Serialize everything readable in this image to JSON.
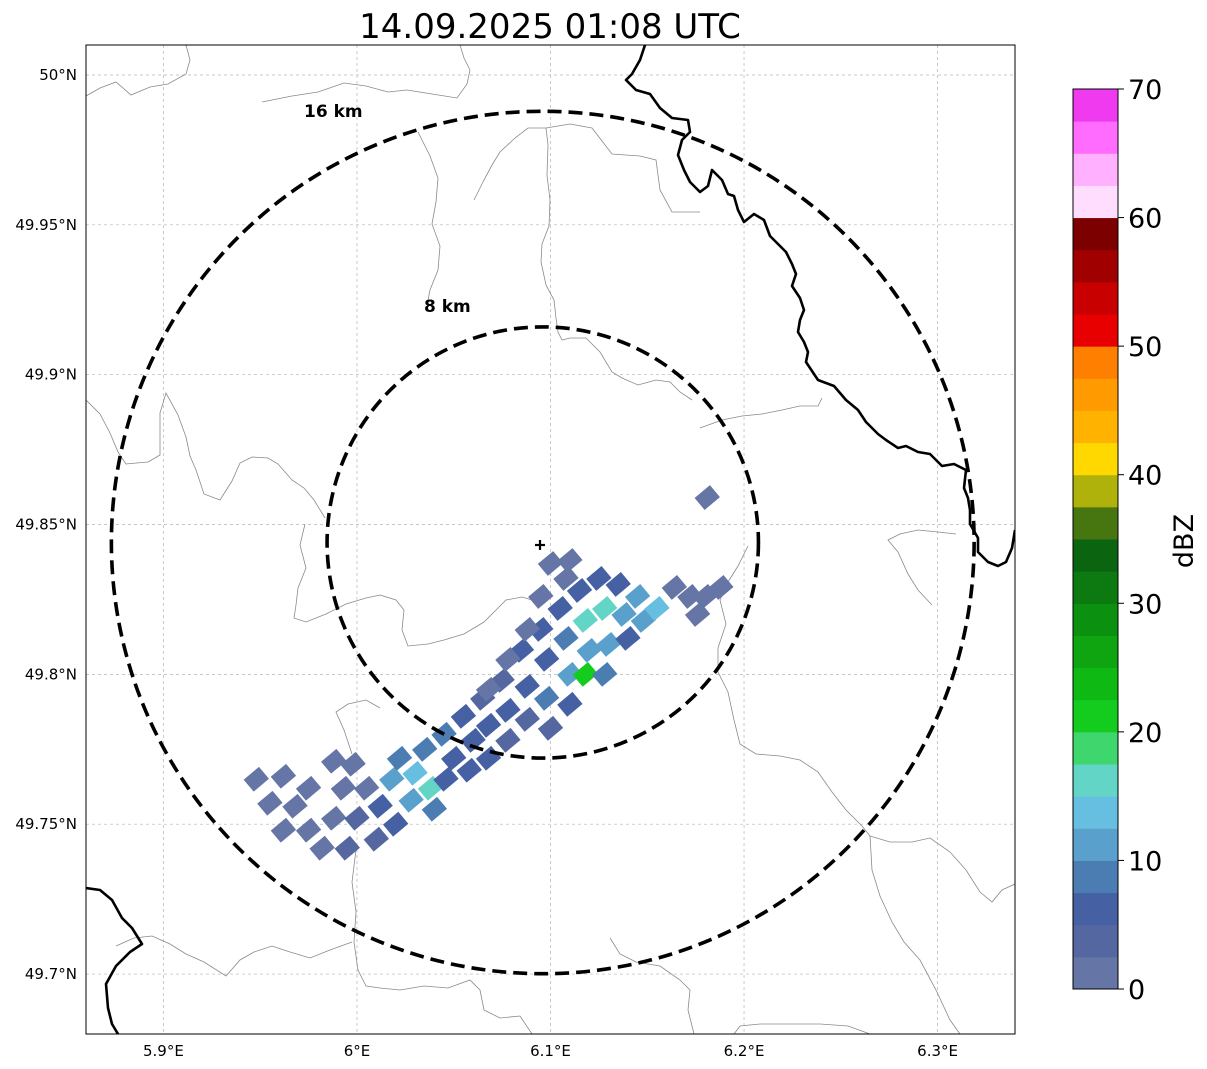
{
  "map": {
    "title": "14.09.2025 01:08 UTC",
    "extent": {
      "lon_min": 5.86,
      "lon_max": 6.34,
      "lat_min": 49.68,
      "lat_max": 50.01
    },
    "radar_site": {
      "lon": 6.096,
      "lat": 49.844
    },
    "grid_on": true,
    "lon_ticks": [
      {
        "value": 5.9,
        "label": "5.9°E"
      },
      {
        "value": 6.0,
        "label": "6°E"
      },
      {
        "value": 6.1,
        "label": "6.1°E"
      },
      {
        "value": 6.2,
        "label": "6.2°E"
      },
      {
        "value": 6.3,
        "label": "6.3°E"
      }
    ],
    "lat_ticks": [
      {
        "value": 50.0,
        "label": "50°N"
      },
      {
        "value": 49.95,
        "label": "49.95°N"
      },
      {
        "value": 49.9,
        "label": "49.9°N"
      },
      {
        "value": 49.85,
        "label": "49.85°N"
      },
      {
        "value": 49.8,
        "label": "49.8°N"
      },
      {
        "value": 49.75,
        "label": "49.75°N"
      },
      {
        "value": 49.7,
        "label": "49.7°N"
      }
    ],
    "range_rings": [
      {
        "radius_km": 8,
        "label": "8 km"
      },
      {
        "radius_km": 16,
        "label": "16 km"
      }
    ],
    "colors": {
      "borders": "#000000",
      "admin": "#8a8a8a",
      "grid": "#b5b5b5",
      "rings": "#000000"
    }
  },
  "colorbar": {
    "label": "dBZ",
    "min": 0,
    "max": 70,
    "step": 2.5,
    "ticks": [
      0,
      10,
      20,
      30,
      40,
      50,
      60,
      70
    ],
    "colors": [
      "#6475a6",
      "#5467a0",
      "#4660a4",
      "#4b7db3",
      "#5aa0cc",
      "#66bfe0",
      "#62d5c6",
      "#3fd66e",
      "#14cc1e",
      "#0fb914",
      "#0ea511",
      "#0c9010",
      "#0c7a10",
      "#0a6410",
      "#47750f",
      "#aeb20a",
      "#ffd800",
      "#ffb300",
      "#ff9a00",
      "#ff7f00",
      "#e80000",
      "#c90000",
      "#a10000",
      "#7c0000",
      "#ffddff",
      "#ffb0ff",
      "#ff6cff",
      "#f03af0"
    ]
  },
  "chart_data": {
    "type": "heatmap",
    "title": "14.09.2025 01:08 UTC",
    "units": "dBZ",
    "points": [
      [
        5.948,
        49.765,
        1
      ],
      [
        5.962,
        49.766,
        1
      ],
      [
        5.955,
        49.757,
        1
      ],
      [
        5.968,
        49.756,
        2
      ],
      [
        5.975,
        49.762,
        1
      ],
      [
        5.962,
        49.748,
        1
      ],
      [
        5.975,
        49.748,
        1
      ],
      [
        5.988,
        49.752,
        1
      ],
      [
        5.982,
        49.742,
        1
      ],
      [
        5.993,
        49.762,
        2
      ],
      [
        5.988,
        49.771,
        1
      ],
      [
        5.998,
        49.77,
        1
      ],
      [
        6.005,
        49.762,
        2
      ],
      [
        6.0,
        49.752,
        3
      ],
      [
        6.012,
        49.756,
        6
      ],
      [
        6.01,
        49.745,
        3
      ],
      [
        5.995,
        49.742,
        4
      ],
      [
        6.018,
        49.765,
        12
      ],
      [
        6.022,
        49.772,
        8
      ],
      [
        6.03,
        49.767,
        14
      ],
      [
        6.035,
        49.775,
        9
      ],
      [
        6.028,
        49.758,
        12
      ],
      [
        6.038,
        49.762,
        15
      ],
      [
        6.02,
        49.75,
        6
      ],
      [
        6.04,
        49.755,
        8
      ],
      [
        6.045,
        49.78,
        9
      ],
      [
        6.05,
        49.772,
        7
      ],
      [
        6.046,
        49.765,
        6
      ],
      [
        6.055,
        49.786,
        6
      ],
      [
        6.06,
        49.778,
        6
      ],
      [
        6.058,
        49.768,
        6
      ],
      [
        6.065,
        49.792,
        3
      ],
      [
        6.068,
        49.783,
        6
      ],
      [
        6.068,
        49.772,
        6
      ],
      [
        6.075,
        49.798,
        3
      ],
      [
        6.078,
        49.788,
        6
      ],
      [
        6.078,
        49.778,
        3
      ],
      [
        6.085,
        49.808,
        6
      ],
      [
        6.088,
        49.796,
        6
      ],
      [
        6.088,
        49.785,
        4
      ],
      [
        6.095,
        49.815,
        6
      ],
      [
        6.098,
        49.805,
        6
      ],
      [
        6.098,
        49.792,
        9
      ],
      [
        6.1,
        49.782,
        4
      ],
      [
        6.105,
        49.822,
        6
      ],
      [
        6.108,
        49.812,
        9
      ],
      [
        6.11,
        49.8,
        11
      ],
      [
        6.11,
        49.79,
        6
      ],
      [
        6.115,
        49.828,
        6
      ],
      [
        6.118,
        49.818,
        15
      ],
      [
        6.12,
        49.808,
        12
      ],
      [
        6.118,
        49.8,
        22
      ],
      [
        6.125,
        49.832,
        6
      ],
      [
        6.128,
        49.822,
        17
      ],
      [
        6.13,
        49.81,
        12
      ],
      [
        6.128,
        49.8,
        9
      ],
      [
        6.135,
        49.83,
        6
      ],
      [
        6.138,
        49.82,
        12
      ],
      [
        6.14,
        49.812,
        6
      ],
      [
        6.145,
        49.826,
        11
      ],
      [
        6.148,
        49.818,
        10
      ],
      [
        6.155,
        49.822,
        13
      ],
      [
        6.1,
        49.837,
        1
      ],
      [
        6.108,
        49.832,
        1
      ],
      [
        6.172,
        49.826,
        2
      ],
      [
        6.18,
        49.826,
        2
      ],
      [
        6.176,
        49.82,
        1
      ],
      [
        6.188,
        49.829,
        1
      ],
      [
        6.164,
        49.829,
        1
      ],
      [
        6.181,
        49.859,
        1
      ],
      [
        6.068,
        49.795,
        1
      ],
      [
        6.078,
        49.805,
        1
      ],
      [
        6.088,
        49.815,
        1
      ],
      [
        6.095,
        49.826,
        1
      ],
      [
        6.11,
        49.838,
        1
      ]
    ]
  }
}
